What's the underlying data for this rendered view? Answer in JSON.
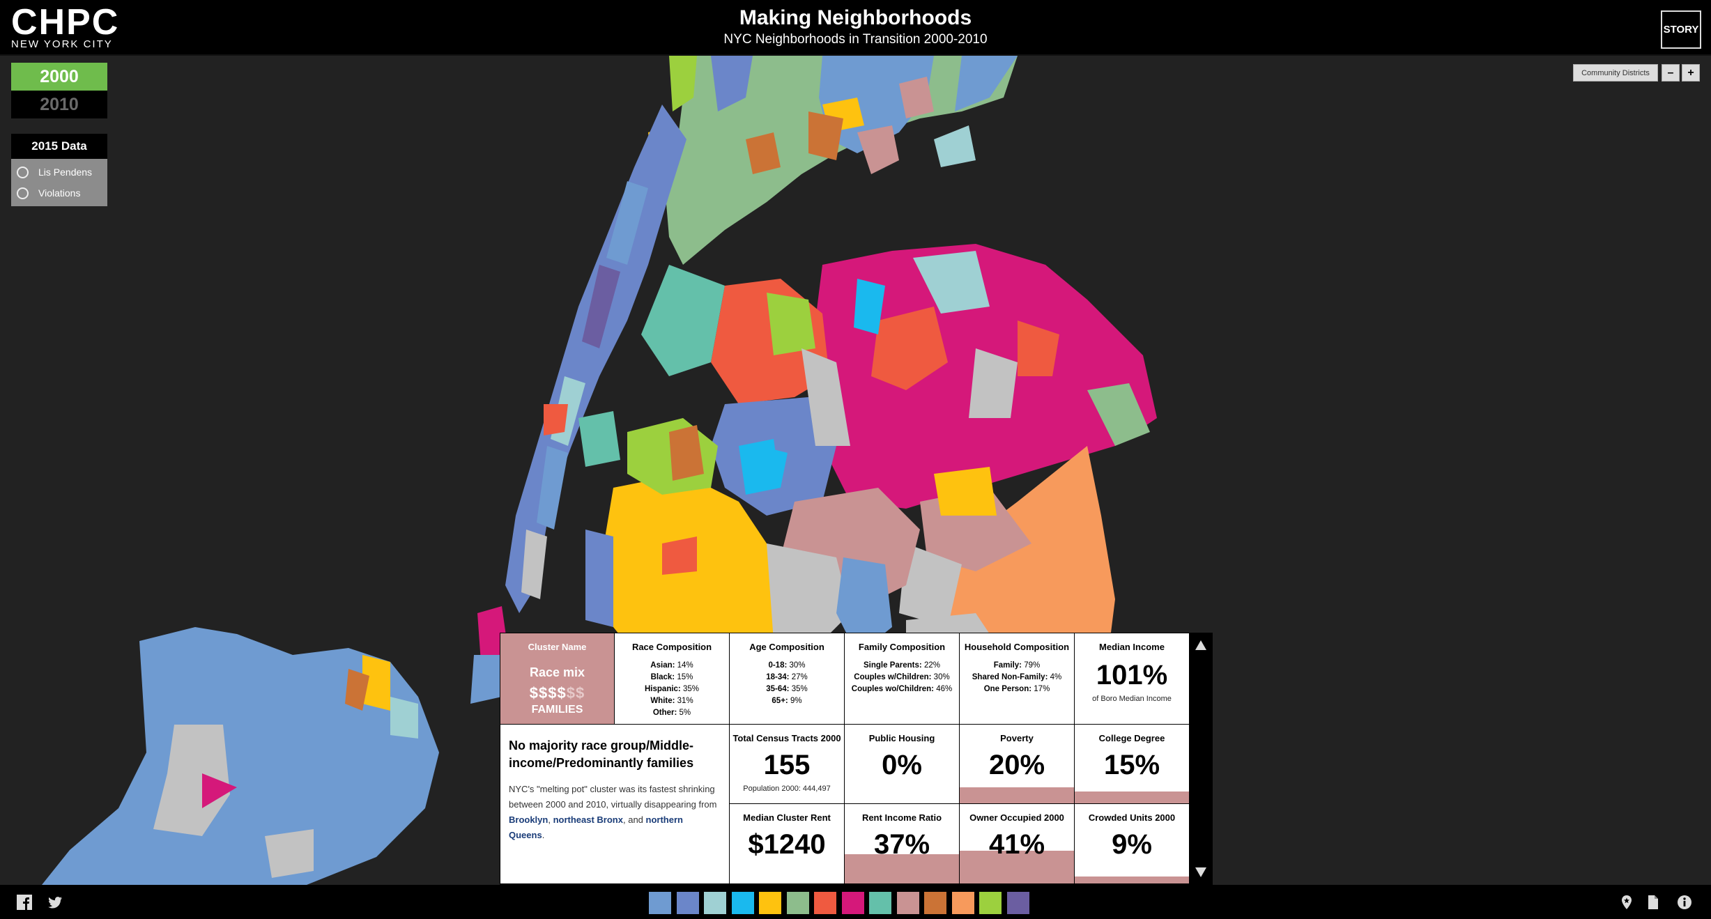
{
  "header": {
    "logo": "CHPC",
    "logo_sub": "NEW YORK CITY",
    "title": "Making Neighborhoods",
    "subtitle": "NYC Neighborhoods in Transition 2000-2010",
    "story_label": "STORY"
  },
  "years": {
    "y2000": "2000",
    "y2010": "2010",
    "selected": "2000"
  },
  "data_panel": {
    "title": "2015 Data",
    "options": [
      "Lis Pendens",
      "Violations"
    ]
  },
  "map_controls": {
    "community_districts": "Community Districts",
    "zoom_out": "–",
    "zoom_in": "+"
  },
  "info": {
    "cluster": {
      "header": "Cluster Name",
      "name": "Race mix",
      "dollars_on": "$$$$",
      "dollars_off": "$$",
      "families": "FAMILIES",
      "color": "#c99393"
    },
    "race": {
      "title": "Race Composition",
      "items": [
        {
          "label": "Asian:",
          "value": "14%"
        },
        {
          "label": "Black:",
          "value": "15%"
        },
        {
          "label": "Hispanic:",
          "value": "35%"
        },
        {
          "label": "White:",
          "value": "31%"
        },
        {
          "label": "Other:",
          "value": "5%"
        }
      ]
    },
    "age": {
      "title": "Age Composition",
      "items": [
        {
          "label": "0-18:",
          "value": "30%"
        },
        {
          "label": "18-34:",
          "value": "27%"
        },
        {
          "label": "35-64:",
          "value": "35%"
        },
        {
          "label": "65+:",
          "value": "9%"
        }
      ]
    },
    "family": {
      "title": "Family Composition",
      "items": [
        {
          "label": "Single Parents:",
          "value": "22%"
        },
        {
          "label": "Couples w/Children:",
          "value": "30%"
        },
        {
          "label": "Couples wo/Children:",
          "value": "46%"
        }
      ]
    },
    "household": {
      "title": "Household Composition",
      "items": [
        {
          "label": "Family:",
          "value": "79%"
        },
        {
          "label": "Shared Non-Family:",
          "value": "4%"
        },
        {
          "label": "One Person:",
          "value": "17%"
        }
      ]
    },
    "median_income": {
      "title": "Median Income",
      "value": "101%",
      "note": "of Boro Median Income"
    },
    "description": {
      "title": "No majority race group/Middle-income/Predominantly families",
      "text_before": "NYC's \"melting pot\" cluster was its fastest shrinking between 2000 and 2010, virtually disappearing from ",
      "link1": "Brooklyn",
      "sep1": ", ",
      "link2": "northeast Bronx",
      "sep2": ", and ",
      "link3": "northern Queens",
      "text_after": "."
    },
    "tracts": {
      "title": "Total Census Tracts 2000",
      "value": "155",
      "note": "Population 2000: 444,497"
    },
    "public_housing": {
      "title": "Public Housing",
      "value": "0%",
      "fill": 0
    },
    "poverty": {
      "title": "Poverty",
      "value": "20%",
      "fill": 0.2
    },
    "college": {
      "title": "College Degree",
      "value": "15%",
      "fill": 0.15
    },
    "rent": {
      "title": "Median Cluster Rent",
      "value": "$1240"
    },
    "rent_income": {
      "title": "Rent Income Ratio",
      "value": "37%",
      "fill": 0.37
    },
    "owner": {
      "title": "Owner Occupied 2000",
      "value": "41%",
      "fill": 0.41
    },
    "crowded": {
      "title": "Crowded Units 2000",
      "value": "9%",
      "fill": 0.09
    }
  },
  "footer": {
    "icons": [
      "facebook-icon",
      "twitter-icon",
      "location-icon",
      "document-icon",
      "info-icon"
    ],
    "legend_colors": [
      "#6f9bd1",
      "#6b86c9",
      "#9fd0d3",
      "#1ab9ee",
      "#fec20f",
      "#8dbd8c",
      "#ef5a40",
      "#d5187a",
      "#64c0aa",
      "#c99393",
      "#cb7336",
      "#f79a5c",
      "#9cd03e",
      "#6b5ea1"
    ]
  },
  "map": {
    "colors": {
      "water": "#222222",
      "blue": "#6f9bd1",
      "periwinkle": "#6b86c9",
      "lightblue": "#9fd0d3",
      "cyan": "#1ab9ee",
      "yellow": "#fec20f",
      "green": "#8dbd8c",
      "orange": "#ef5a40",
      "magenta": "#d5187a",
      "teal": "#64c0aa",
      "rose": "#c99393",
      "brown": "#cb7336",
      "peach": "#f79a5c",
      "lime": "#9cd03e",
      "purple": "#6b5ea1",
      "gray": "#c2c2c2"
    }
  }
}
